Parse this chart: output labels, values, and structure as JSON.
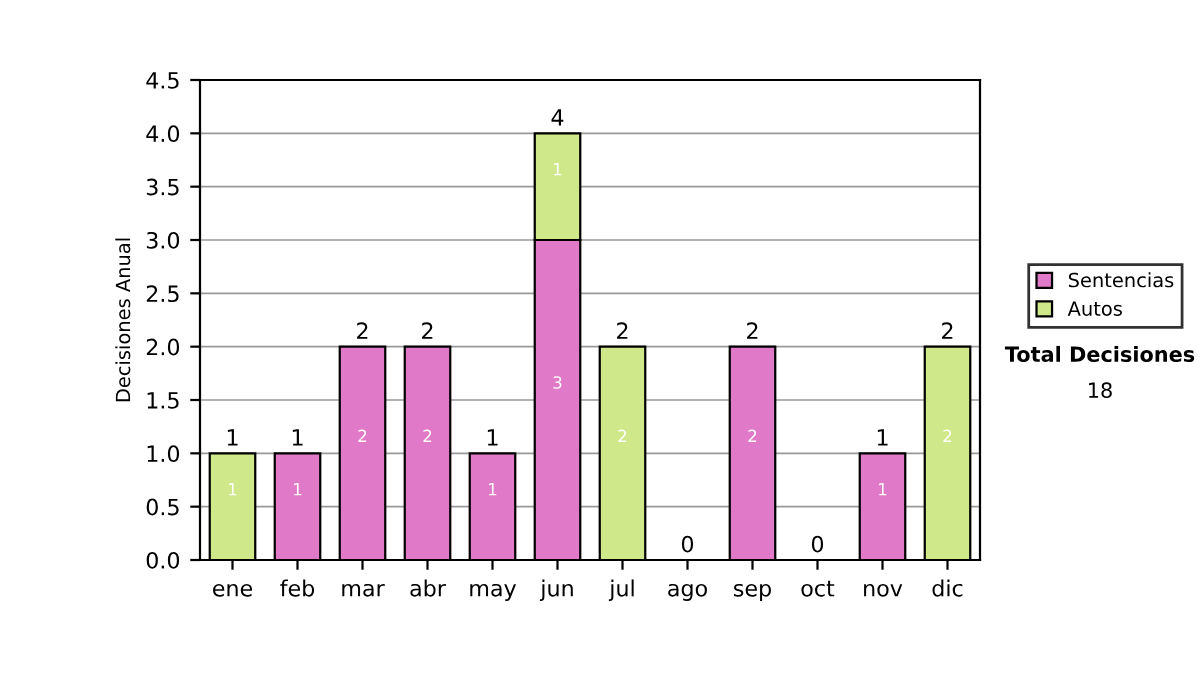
{
  "chart_data": {
    "type": "bar",
    "stacked": true,
    "ylabel": "Decisiones Anual",
    "categories": [
      "ene",
      "feb",
      "mar",
      "abr",
      "may",
      "jun",
      "jul",
      "ago",
      "sep",
      "oct",
      "nov",
      "dic"
    ],
    "series": [
      {
        "name": "Sentencias",
        "color": "#e07ac8",
        "values": [
          null,
          1,
          2,
          2,
          1,
          3,
          null,
          null,
          2,
          null,
          1,
          null
        ]
      },
      {
        "name": "Autos",
        "color": "#cfe88a",
        "values": [
          1,
          null,
          null,
          null,
          null,
          1,
          2,
          null,
          null,
          null,
          null,
          2
        ]
      }
    ],
    "totals": [
      "1",
      "1",
      "2",
      "2",
      "1",
      "4",
      "2",
      "0",
      "2",
      "0",
      "1",
      "2"
    ],
    "data_labels": true,
    "ylim": [
      0,
      4.5
    ],
    "yticks": [
      {
        "value": 0,
        "label": "0.0"
      },
      {
        "value": 0.5,
        "label": "0.5"
      },
      {
        "value": 1,
        "label": "1.0"
      },
      {
        "value": 1.5,
        "label": "1.5"
      },
      {
        "value": 2,
        "label": "2.0"
      },
      {
        "value": 2.5,
        "label": "2.5"
      },
      {
        "value": 3,
        "label": "3.0"
      },
      {
        "value": 3.5,
        "label": "3.5"
      },
      {
        "value": 4,
        "label": "4.0"
      },
      {
        "value": 4.5,
        "label": "4.5"
      }
    ],
    "grid": "y",
    "legend": "right",
    "annotations": [
      "Total Decisiones",
      "18"
    ]
  }
}
